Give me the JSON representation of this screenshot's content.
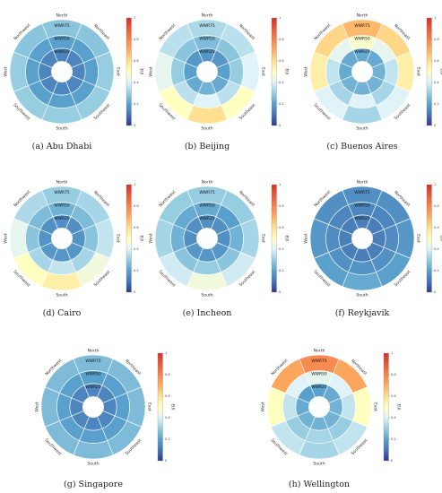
{
  "chart_data": [
    {
      "type": "heatmap",
      "caption": "(a) Abu Dhabi",
      "directions": [
        "North",
        "Northeast",
        "East",
        "Southeast",
        "South",
        "Southwest",
        "West",
        "Northwest"
      ],
      "rings": [
        "WWR25",
        "WWR50",
        "WWR75"
      ],
      "colorbar_label": "EUI",
      "colorbar_range": [
        0,
        1
      ],
      "values": [
        [
          0.14,
          0.14,
          0.14,
          0.14,
          0.14,
          0.14,
          0.14,
          0.14
        ],
        [
          0.2,
          0.2,
          0.2,
          0.2,
          0.2,
          0.2,
          0.2,
          0.2
        ],
        [
          0.28,
          0.28,
          0.3,
          0.3,
          0.3,
          0.3,
          0.3,
          0.28
        ]
      ]
    },
    {
      "type": "heatmap",
      "caption": "(b) Beijing",
      "directions": [
        "North",
        "Northeast",
        "East",
        "Southeast",
        "South",
        "Southwest",
        "West",
        "Northwest"
      ],
      "rings": [
        "WWR25",
        "WWR50",
        "WWR75"
      ],
      "colorbar_label": "EUI",
      "colorbar_range": [
        0,
        1
      ],
      "values": [
        [
          0.18,
          0.18,
          0.2,
          0.22,
          0.24,
          0.22,
          0.2,
          0.18
        ],
        [
          0.26,
          0.28,
          0.3,
          0.35,
          0.4,
          0.35,
          0.3,
          0.28
        ],
        [
          0.33,
          0.35,
          0.4,
          0.5,
          0.6,
          0.5,
          0.42,
          0.35
        ]
      ]
    },
    {
      "type": "heatmap",
      "caption": "(c) Buenos Aires",
      "directions": [
        "North",
        "Northeast",
        "East",
        "Southeast",
        "South",
        "Southwest",
        "West",
        "Northwest"
      ],
      "rings": [
        "WWR25",
        "WWR50",
        "WWR75"
      ],
      "colorbar_label": "EUI",
      "colorbar_range": [
        0,
        1
      ],
      "values": [
        [
          0.22,
          0.22,
          0.24,
          0.24,
          0.24,
          0.24,
          0.22,
          0.22
        ],
        [
          0.48,
          0.42,
          0.36,
          0.32,
          0.4,
          0.32,
          0.36,
          0.42
        ],
        [
          0.68,
          0.62,
          0.55,
          0.4,
          0.32,
          0.4,
          0.55,
          0.62
        ]
      ]
    },
    {
      "type": "heatmap",
      "caption": "(d) Cairo",
      "directions": [
        "North",
        "Northeast",
        "East",
        "Southeast",
        "South",
        "Southwest",
        "West",
        "Northwest"
      ],
      "rings": [
        "WWR25",
        "WWR50",
        "WWR75"
      ],
      "colorbar_label": "EUI",
      "colorbar_range": [
        0,
        1
      ],
      "values": [
        [
          0.16,
          0.16,
          0.17,
          0.18,
          0.18,
          0.18,
          0.17,
          0.16
        ],
        [
          0.24,
          0.26,
          0.28,
          0.32,
          0.36,
          0.32,
          0.28,
          0.26
        ],
        [
          0.3,
          0.32,
          0.36,
          0.45,
          0.55,
          0.5,
          0.42,
          0.33
        ]
      ]
    },
    {
      "type": "heatmap",
      "caption": "(e) Incheon",
      "directions": [
        "North",
        "Northeast",
        "East",
        "Southeast",
        "South",
        "Southwest",
        "West",
        "Northwest"
      ],
      "rings": [
        "WWR25",
        "WWR50",
        "WWR75"
      ],
      "colorbar_label": "EUI",
      "colorbar_range": [
        0,
        1
      ],
      "values": [
        [
          0.16,
          0.16,
          0.16,
          0.18,
          0.18,
          0.18,
          0.16,
          0.16
        ],
        [
          0.22,
          0.2,
          0.24,
          0.28,
          0.3,
          0.28,
          0.24,
          0.22
        ],
        [
          0.3,
          0.3,
          0.32,
          0.38,
          0.45,
          0.38,
          0.32,
          0.3
        ]
      ]
    },
    {
      "type": "heatmap",
      "caption": "(f) Reykjavik",
      "directions": [
        "North",
        "Northeast",
        "East",
        "Southeast",
        "South",
        "Southwest",
        "West",
        "Northwest"
      ],
      "rings": [
        "WWR25",
        "WWR50",
        "WWR75"
      ],
      "colorbar_label": "EUI",
      "colorbar_range": [
        0,
        1
      ],
      "values": [
        [
          0.12,
          0.12,
          0.12,
          0.12,
          0.12,
          0.12,
          0.12,
          0.12
        ],
        [
          0.14,
          0.14,
          0.15,
          0.16,
          0.17,
          0.16,
          0.15,
          0.14
        ],
        [
          0.16,
          0.16,
          0.18,
          0.2,
          0.22,
          0.2,
          0.18,
          0.16
        ]
      ]
    },
    {
      "type": "heatmap",
      "caption": "(g) Singapore",
      "directions": [
        "North",
        "Northeast",
        "East",
        "Southeast",
        "South",
        "Southwest",
        "West",
        "Northwest"
      ],
      "rings": [
        "WWR25",
        "WWR50",
        "WWR75"
      ],
      "colorbar_label": "EUI",
      "colorbar_range": [
        0,
        1
      ],
      "values": [
        [
          0.14,
          0.14,
          0.14,
          0.14,
          0.14,
          0.14,
          0.14,
          0.14
        ],
        [
          0.2,
          0.2,
          0.2,
          0.2,
          0.2,
          0.2,
          0.2,
          0.2
        ],
        [
          0.26,
          0.26,
          0.26,
          0.26,
          0.26,
          0.26,
          0.26,
          0.26
        ]
      ]
    },
    {
      "type": "heatmap",
      "caption": "(h) Wellington",
      "directions": [
        "North",
        "Northeast",
        "East",
        "Southeast",
        "South",
        "Southwest",
        "West",
        "Northwest"
      ],
      "rings": [
        "WWR25",
        "WWR50",
        "WWR75"
      ],
      "colorbar_label": "EUI",
      "colorbar_range": [
        0,
        1
      ],
      "values": [
        [
          0.2,
          0.22,
          0.24,
          0.24,
          0.24,
          0.24,
          0.22,
          0.2
        ],
        [
          0.42,
          0.4,
          0.36,
          0.3,
          0.32,
          0.3,
          0.36,
          0.4
        ],
        [
          0.78,
          0.72,
          0.5,
          0.36,
          0.32,
          0.36,
          0.5,
          0.72
        ]
      ]
    }
  ],
  "colorbar_ticks": [
    "0",
    "0.2",
    "0.4",
    "0.6",
    "0.8",
    "1"
  ],
  "colors": {
    "low": "#313695",
    "mid": "#ffffbf",
    "high": "#d73027"
  }
}
